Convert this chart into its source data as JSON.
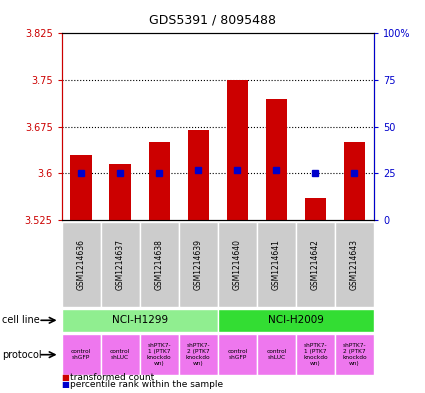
{
  "title": "GDS5391 / 8095488",
  "samples": [
    "GSM1214636",
    "GSM1214637",
    "GSM1214638",
    "GSM1214639",
    "GSM1214640",
    "GSM1214641",
    "GSM1214642",
    "GSM1214643"
  ],
  "red_values": [
    3.63,
    3.615,
    3.65,
    3.67,
    3.75,
    3.72,
    3.56,
    3.65
  ],
  "blue_values_pct": [
    25,
    25,
    25,
    27,
    27,
    27,
    25,
    25
  ],
  "y_min": 3.525,
  "y_max": 3.825,
  "y_ticks": [
    3.525,
    3.6,
    3.675,
    3.75,
    3.825
  ],
  "y_tick_labels": [
    "3.525",
    "3.6",
    "3.675",
    "3.75",
    "3.825"
  ],
  "y2_ticks": [
    0,
    25,
    50,
    75,
    100
  ],
  "y2_tick_labels": [
    "0",
    "25",
    "50",
    "75",
    "100%"
  ],
  "dotted_lines": [
    3.6,
    3.675,
    3.75
  ],
  "bar_base": 3.525,
  "cell_line_groups": [
    {
      "label": "NCI-H1299",
      "start": 0,
      "end": 3,
      "color": "#90EE90"
    },
    {
      "label": "NCI-H2009",
      "start": 4,
      "end": 7,
      "color": "#33DD33"
    }
  ],
  "protocols": [
    {
      "label": "control\nshGFP",
      "color": "#EE77EE"
    },
    {
      "label": "control\nshLUC",
      "color": "#EE77EE"
    },
    {
      "label": "shPTK7-\n1 (PTK7\nknockdo\nwn)",
      "color": "#EE77EE"
    },
    {
      "label": "shPTK7-\n2 (PTK7\nknockdo\nwn)",
      "color": "#EE77EE"
    },
    {
      "label": "control\nshGFP",
      "color": "#EE77EE"
    },
    {
      "label": "control\nshLUC",
      "color": "#EE77EE"
    },
    {
      "label": "shPTK7-\n1 (PTK7\nknockdo\nwn)",
      "color": "#EE77EE"
    },
    {
      "label": "shPTK7-\n2 (PTK7\nknockdo\nwn)",
      "color": "#EE77EE"
    }
  ],
  "red_color": "#CC0000",
  "blue_color": "#0000CC",
  "legend_red": "transformed count",
  "legend_blue": "percentile rank within the sample",
  "cell_line_label": "cell line",
  "protocol_label": "protocol",
  "fig_width": 4.25,
  "fig_height": 3.93,
  "dpi": 100
}
